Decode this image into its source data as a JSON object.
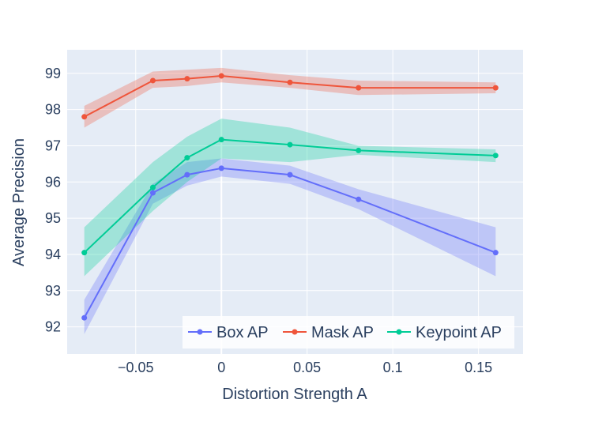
{
  "chart_data": {
    "type": "line",
    "title": "",
    "xlabel": "Distortion Strength A",
    "ylabel": "Average Precision",
    "xlim": [
      -0.09,
      0.176
    ],
    "ylim": [
      91.25,
      99.65
    ],
    "x_ticks": [
      -0.05,
      0,
      0.05,
      0.1,
      0.15
    ],
    "x_tick_labels": [
      "−0.05",
      "0",
      "0.05",
      "0.1",
      "0.15"
    ],
    "y_ticks": [
      92,
      93,
      94,
      95,
      96,
      97,
      98,
      99
    ],
    "y_tick_labels": [
      "92",
      "93",
      "94",
      "95",
      "96",
      "97",
      "98",
      "99"
    ],
    "grid": true,
    "legend_position": "bottom-right",
    "x": [
      -0.08,
      -0.04,
      -0.02,
      0,
      0.04,
      0.08,
      0.16
    ],
    "series": [
      {
        "name": "Box AP",
        "color": "#636efa",
        "values": [
          92.25,
          95.7,
          96.2,
          96.38,
          96.2,
          95.52,
          94.05
        ],
        "upper": [
          92.75,
          95.95,
          96.55,
          96.65,
          96.45,
          95.8,
          94.75
        ],
        "lower": [
          91.8,
          95.4,
          95.9,
          96.15,
          95.95,
          95.25,
          93.4
        ]
      },
      {
        "name": "Mask AP",
        "color": "#ef553b",
        "values": [
          97.8,
          98.8,
          98.85,
          98.93,
          98.75,
          98.6,
          98.6
        ],
        "upper": [
          98.1,
          99.05,
          99.1,
          99.15,
          98.95,
          98.8,
          98.75
        ],
        "lower": [
          97.5,
          98.6,
          98.65,
          98.75,
          98.6,
          98.4,
          98.45
        ]
      },
      {
        "name": "Keypoint AP",
        "color": "#00cc96",
        "values": [
          94.05,
          95.85,
          96.67,
          97.17,
          97.03,
          96.87,
          96.73
        ],
        "upper": [
          94.75,
          96.55,
          97.25,
          97.75,
          97.5,
          97.0,
          96.9
        ],
        "lower": [
          93.4,
          95.2,
          96.0,
          96.65,
          96.55,
          96.75,
          96.55
        ]
      }
    ]
  }
}
